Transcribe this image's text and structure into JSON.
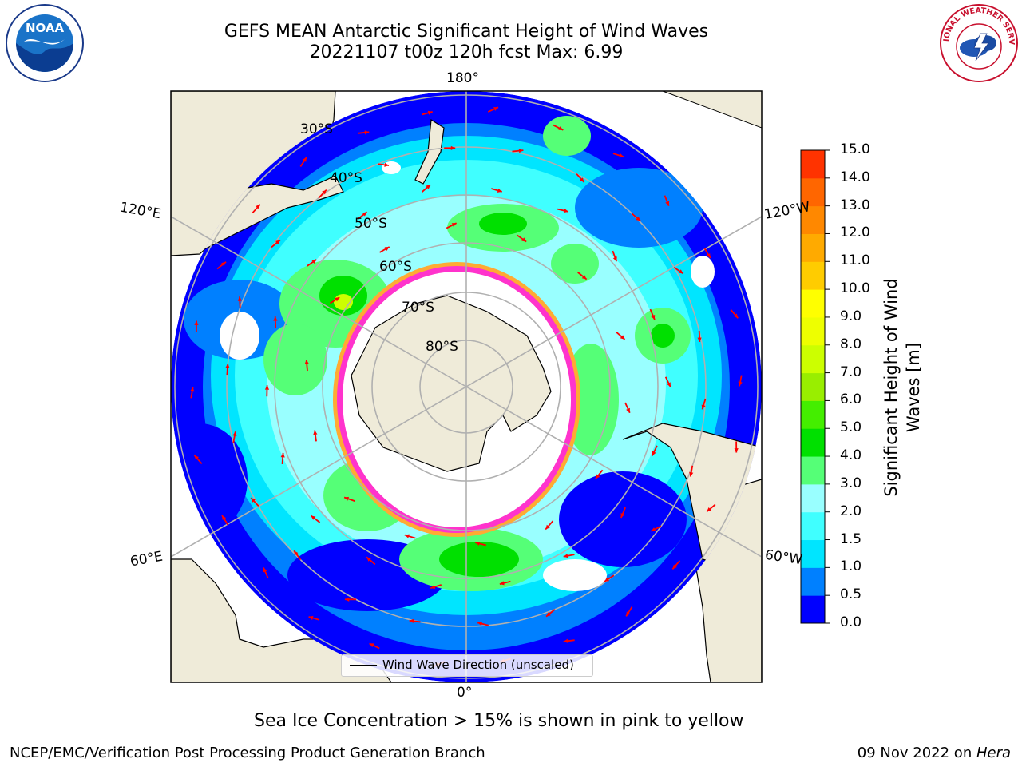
{
  "title_line1": "GEFS MEAN Antarctic Significant Height of Wind Waves",
  "title_line2": "20221107 t00z 120h fcst   Max: 6.99",
  "logos": {
    "noaa": {
      "name": "noaa-logo",
      "text": "NOAA"
    },
    "nws": {
      "name": "nws-logo",
      "text": "NATIONAL WEATHER SERVICE"
    }
  },
  "map": {
    "projection": "south-polar-stereographic",
    "longitude_labels": {
      "top": "180°",
      "upper_left": "120°E",
      "upper_right": "120°W",
      "lower_left": "60°E",
      "lower_right": "60°W",
      "bottom": "0°"
    },
    "latitude_labels": [
      "30°S",
      "40°S",
      "50°S",
      "60°S",
      "70°S",
      "80°S"
    ],
    "legend_label": "Wind Wave Direction (unscaled)",
    "colors": {
      "land": "#efebd9",
      "sea_ice": [
        "#ff33cc",
        "#ffaa33",
        "#ffdd55"
      ],
      "grid": "#b0b0b0",
      "arrow": "#ff0000"
    }
  },
  "colorbar": {
    "label": "Significant Height of Wind Waves [m]",
    "ticks": [
      "0.0",
      "0.5",
      "1.0",
      "1.5",
      "2.0",
      "3.0",
      "4.0",
      "5.0",
      "6.0",
      "7.0",
      "8.0",
      "9.0",
      "10.0",
      "11.0",
      "12.0",
      "13.0",
      "14.0",
      "15.0"
    ],
    "colors": [
      "#0000ff",
      "#0080ff",
      "#00e5ff",
      "#40ffff",
      "#99ffff",
      "#55ff77",
      "#00e000",
      "#44ee00",
      "#99ee00",
      "#ccff00",
      "#eeff00",
      "#ffff00",
      "#ffcc00",
      "#ffaa00",
      "#ff8800",
      "#ff6600",
      "#ff3300"
    ]
  },
  "footnote": "Sea Ice Concentration > 15% is shown in pink to yellow",
  "credit": "NCEP/EMC/Verification Post Processing Product Generation Branch",
  "date_text": "09 Nov 2022 on ",
  "date_machine": "Hera"
}
